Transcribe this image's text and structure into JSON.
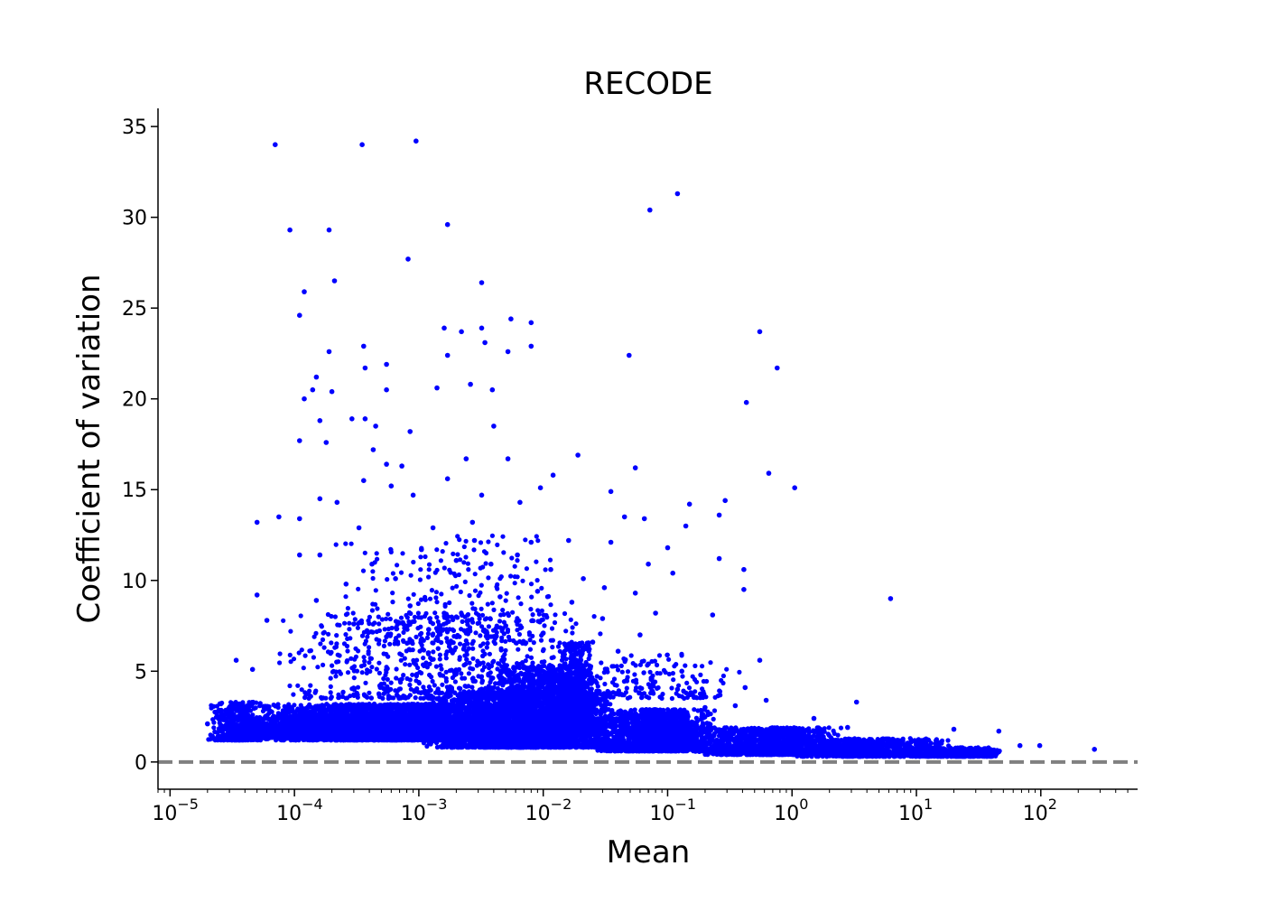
{
  "chart_data": {
    "type": "scatter",
    "title": "RECODE",
    "xlabel": "Mean",
    "ylabel": "Coefficient of variation",
    "x_scale": "log",
    "xlim": [
      8e-06,
      600
    ],
    "ylim": [
      -1.5,
      36
    ],
    "x_ticks": [
      {
        "base": "10",
        "exp": "−5"
      },
      {
        "base": "10",
        "exp": "−4"
      },
      {
        "base": "10",
        "exp": "−3"
      },
      {
        "base": "10",
        "exp": "−2"
      },
      {
        "base": "10",
        "exp": "−1"
      },
      {
        "base": "10",
        "exp": "0"
      },
      {
        "base": "10",
        "exp": "1"
      },
      {
        "base": "10",
        "exp": "2"
      }
    ],
    "y_ticks": [
      "0",
      "5",
      "10",
      "15",
      "20",
      "25",
      "30",
      "35"
    ],
    "reference_line": {
      "y": 0,
      "style": "dashed",
      "color": "#808080"
    },
    "point_color": "#0000ff",
    "grid": false,
    "legend": "none",
    "points": [
      [
        7e-05,
        34.0
      ],
      [
        0.00035,
        34.0
      ],
      [
        0.00095,
        34.2
      ],
      [
        0.12,
        31.3
      ],
      [
        0.072,
        30.4
      ],
      [
        9.2e-05,
        29.3
      ],
      [
        0.00019,
        29.3
      ],
      [
        0.0017,
        29.6
      ],
      [
        0.00082,
        27.7
      ],
      [
        0.00021,
        26.5
      ],
      [
        0.0032,
        26.4
      ],
      [
        0.00012,
        25.9
      ],
      [
        0.00011,
        24.6
      ],
      [
        0.0055,
        24.4
      ],
      [
        0.008,
        24.2
      ],
      [
        0.0016,
        23.9
      ],
      [
        0.0032,
        23.9
      ],
      [
        0.0022,
        23.7
      ],
      [
        0.55,
        23.7
      ],
      [
        0.00036,
        22.9
      ],
      [
        0.0034,
        23.1
      ],
      [
        0.008,
        22.9
      ],
      [
        0.00019,
        22.6
      ],
      [
        0.0017,
        22.4
      ],
      [
        0.049,
        22.4
      ],
      [
        0.0052,
        22.6
      ],
      [
        0.00055,
        21.9
      ],
      [
        0.00037,
        21.7
      ],
      [
        0.76,
        21.7
      ],
      [
        0.00015,
        21.2
      ],
      [
        0.00014,
        20.5
      ],
      [
        0.0002,
        20.4
      ],
      [
        0.00055,
        20.5
      ],
      [
        0.0014,
        20.6
      ],
      [
        0.0026,
        20.8
      ],
      [
        0.0039,
        20.5
      ],
      [
        0.00012,
        20.0
      ],
      [
        0.43,
        19.8
      ],
      [
        0.00016,
        18.8
      ],
      [
        0.00029,
        18.9
      ],
      [
        0.00037,
        18.9
      ],
      [
        0.00045,
        18.5
      ],
      [
        0.004,
        18.5
      ],
      [
        0.00085,
        18.2
      ],
      [
        0.00011,
        17.7
      ],
      [
        0.00018,
        17.6
      ],
      [
        0.00043,
        17.2
      ],
      [
        0.0024,
        16.7
      ],
      [
        0.019,
        16.9
      ],
      [
        0.0052,
        16.7
      ],
      [
        0.00055,
        16.4
      ],
      [
        0.00073,
        16.3
      ],
      [
        0.0017,
        15.6
      ],
      [
        0.055,
        16.2
      ],
      [
        0.65,
        15.9
      ],
      [
        1.05,
        15.1
      ],
      [
        0.00036,
        15.5
      ],
      [
        0.0006,
        15.2
      ],
      [
        0.012,
        15.8
      ],
      [
        0.0095,
        15.1
      ],
      [
        0.00016,
        14.5
      ],
      [
        0.00022,
        14.3
      ],
      [
        0.0009,
        14.7
      ],
      [
        0.0032,
        14.7
      ],
      [
        0.0065,
        14.3
      ],
      [
        0.035,
        14.9
      ],
      [
        0.15,
        14.2
      ],
      [
        0.29,
        14.4
      ],
      [
        5e-05,
        13.2
      ],
      [
        7.5e-05,
        13.5
      ],
      [
        0.00011,
        13.4
      ],
      [
        0.00033,
        12.9
      ],
      [
        0.0013,
        12.9
      ],
      [
        0.0027,
        13.2
      ],
      [
        0.045,
        13.5
      ],
      [
        0.065,
        13.4
      ],
      [
        0.14,
        13.0
      ],
      [
        0.26,
        13.6
      ],
      [
        0.0028,
        12.2
      ],
      [
        0.008,
        12.1
      ],
      [
        0.016,
        12.2
      ],
      [
        0.035,
        12.1
      ],
      [
        0.1,
        11.8
      ],
      [
        0.00011,
        11.4
      ],
      [
        0.00016,
        11.4
      ],
      [
        0.26,
        11.2
      ],
      [
        0.07,
        10.9
      ],
      [
        0.41,
        10.6
      ],
      [
        0.11,
        10.4
      ],
      [
        0.41,
        9.5
      ],
      [
        6.2,
        9.0
      ],
      [
        5e-05,
        9.2
      ],
      [
        0.23,
        8.1
      ],
      [
        0.55,
        5.6
      ],
      [
        0.42,
        4.1
      ],
      [
        0.62,
        3.4
      ],
      [
        3.3,
        3.3
      ],
      [
        1.5,
        2.4
      ],
      [
        2.8,
        1.9
      ],
      [
        20,
        1.8
      ],
      [
        46,
        1.7
      ],
      [
        0.12,
        4.0
      ],
      [
        0.2,
        3.0
      ],
      [
        2e-05,
        2.1
      ],
      [
        3.2e-05,
        2.5
      ],
      [
        2.6e-05,
        1.3
      ],
      [
        98.0,
        0.9
      ],
      [
        68.0,
        0.9
      ],
      [
        270.0,
        0.7
      ],
      [
        3.4e-05,
        5.6
      ],
      [
        4.6e-05,
        5.1
      ],
      [
        6e-05,
        7.8
      ],
      [
        0.00026,
        9.8
      ],
      [
        0.00042,
        10.9
      ],
      [
        0.00065,
        10.1
      ],
      [
        0.00105,
        11.7
      ],
      [
        0.002,
        11.1
      ],
      [
        0.0038,
        10.9
      ],
      [
        0.0062,
        11.4
      ],
      [
        0.0115,
        10.6
      ],
      [
        0.021,
        10.1
      ],
      [
        0.031,
        9.6
      ],
      [
        0.055,
        9.3
      ],
      [
        0.08,
        8.2
      ],
      [
        0.00015,
        8.9
      ],
      [
        0.00085,
        8.6
      ],
      [
        0.0016,
        8.2
      ],
      [
        0.0045,
        9.1
      ],
      [
        0.009,
        9.4
      ],
      [
        0.017,
        8.8
      ],
      [
        0.03,
        7.9
      ],
      [
        0.06,
        7.0
      ],
      [
        0.0003,
        7.6
      ],
      [
        0.00055,
        6.9
      ],
      [
        0.0012,
        7.3
      ],
      [
        0.0025,
        7.8
      ],
      [
        0.005,
        7.5
      ],
      [
        0.01,
        7.1
      ],
      [
        0.025,
        6.6
      ],
      [
        0.04,
        6.1
      ],
      [
        0.07,
        5.4
      ],
      [
        0.13,
        5.0
      ],
      [
        0.35,
        3.1
      ]
    ],
    "clusters": [
      {
        "lx0": -4.3,
        "lx1": -2.2,
        "y0": 1.2,
        "y1": 3.2,
        "n": 3200
      },
      {
        "lx0": -4.6,
        "lx1": -2.8,
        "y0": 1.3,
        "y1": 2.6,
        "n": 1500
      },
      {
        "lx0": -4.7,
        "lx1": -4.2,
        "y0": 1.2,
        "y1": 3.3,
        "n": 500
      },
      {
        "lx0": -3.0,
        "lx1": -1.4,
        "y0": 0.8,
        "y1": 3.9,
        "n": 2600
      },
      {
        "lx0": -2.5,
        "lx1": -1.4,
        "y0": 1.5,
        "y1": 5.3,
        "n": 1600
      },
      {
        "lx0": -1.9,
        "lx1": -1.6,
        "y0": 2.0,
        "y1": 6.6,
        "n": 500
      },
      {
        "lx0": -1.6,
        "lx1": -0.6,
        "y0": 0.6,
        "y1": 2.9,
        "n": 1700
      },
      {
        "lx0": -0.8,
        "lx1": 0.4,
        "y0": 0.4,
        "y1": 1.9,
        "n": 1300
      },
      {
        "lx0": 0.0,
        "lx1": 1.3,
        "y0": 0.3,
        "y1": 1.3,
        "n": 900
      },
      {
        "lx0": 1.0,
        "lx1": 1.7,
        "y0": 0.3,
        "y1": 0.8,
        "n": 350
      },
      {
        "lx0": -4.2,
        "lx1": -1.5,
        "y0": 3.5,
        "y1": 8.2,
        "n": 700
      },
      {
        "lx0": -3.8,
        "lx1": -1.7,
        "y0": 6.5,
        "y1": 12.5,
        "n": 260
      },
      {
        "lx0": -1.8,
        "lx1": -0.4,
        "y0": 3.5,
        "y1": 6.0,
        "n": 160
      }
    ]
  }
}
